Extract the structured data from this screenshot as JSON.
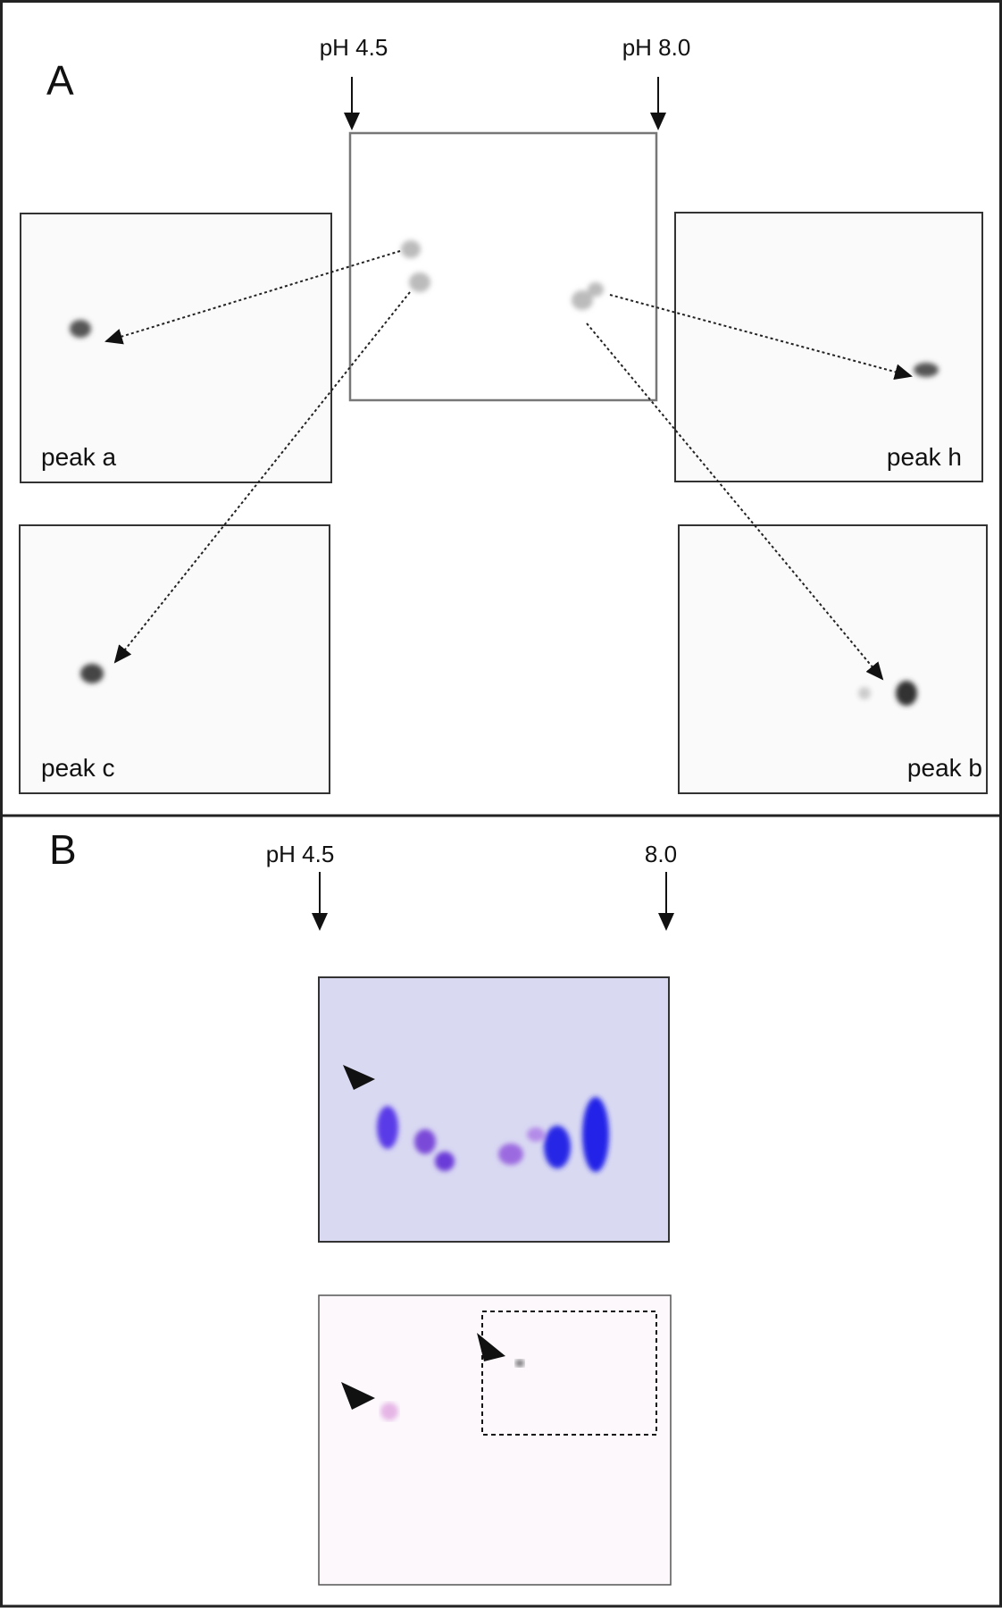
{
  "panels": {
    "A": {
      "label": "A",
      "ph_low": "pH 4.5",
      "ph_high": "pH 8.0",
      "insets": [
        "peak a",
        "peak h",
        "peak c",
        "peak b"
      ]
    },
    "B": {
      "label": "B",
      "ph_low": "pH 4.5",
      "ph_high": "8.0"
    }
  }
}
